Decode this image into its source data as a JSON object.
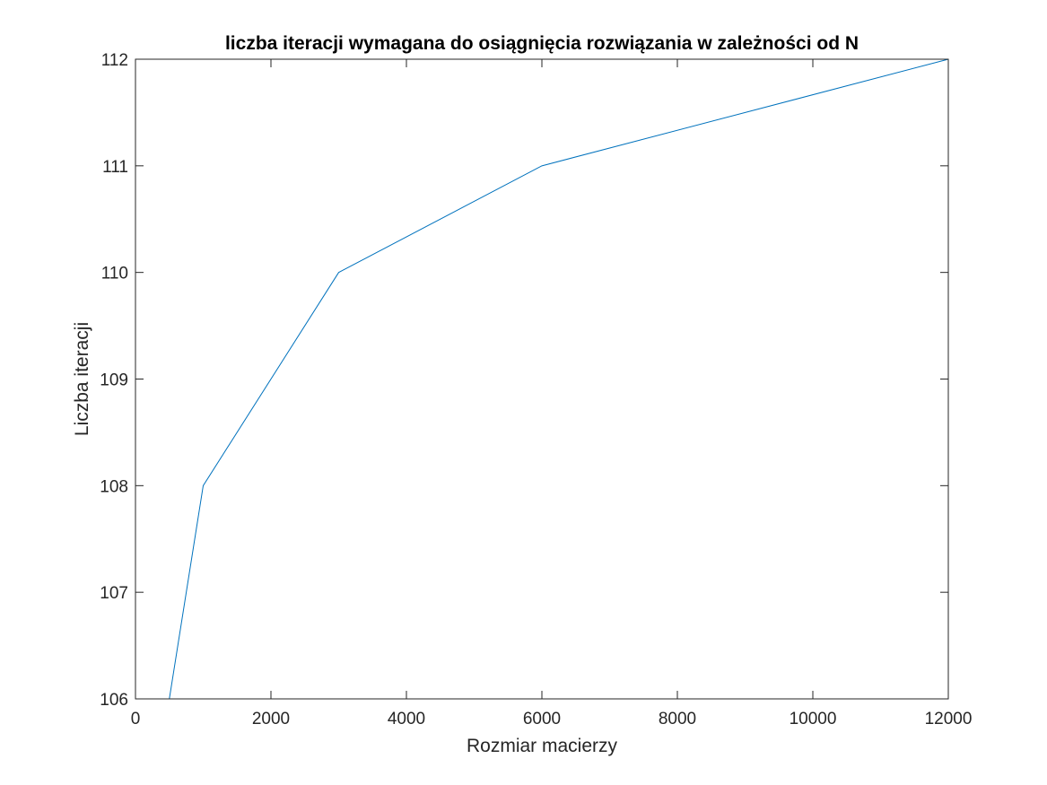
{
  "chart_data": {
    "type": "line",
    "title": "liczba iteracji wymagana do osiągnięcia rozwiązania w zależności od N",
    "xlabel": "Rozmiar macierzy",
    "ylabel": "Liczba iteracji",
    "xlim": [
      0,
      12000
    ],
    "ylim": [
      106,
      112
    ],
    "xticks": [
      0,
      2000,
      4000,
      6000,
      8000,
      10000,
      12000
    ],
    "yticks": [
      106,
      107,
      108,
      109,
      110,
      111,
      112
    ],
    "grid": false,
    "series": [
      {
        "x": [
          500,
          1000,
          3000,
          6000,
          12000
        ],
        "y": [
          106,
          108,
          110,
          111,
          112
        ],
        "color": "#0072BD"
      }
    ]
  }
}
